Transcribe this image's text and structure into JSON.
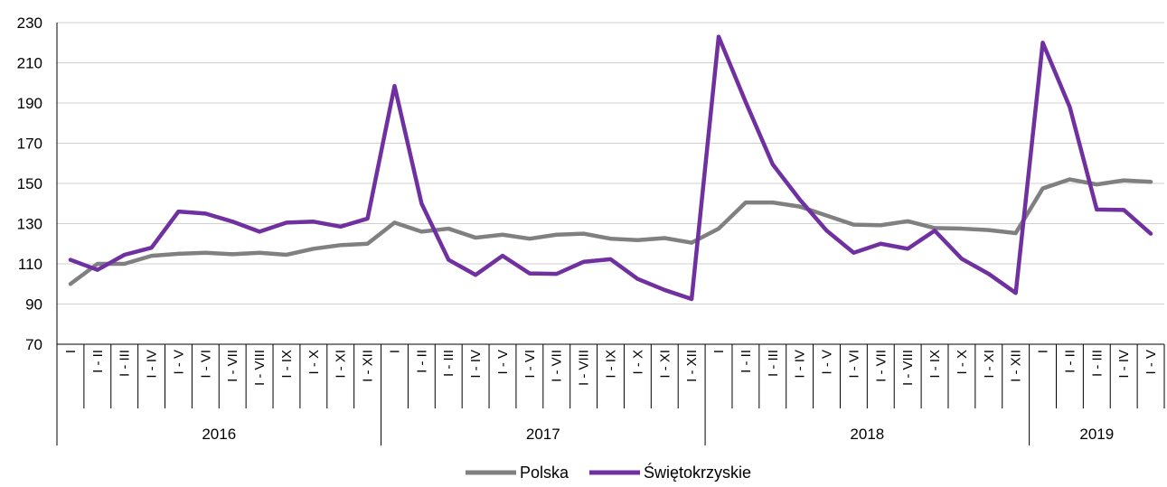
{
  "chart_data": {
    "type": "line",
    "title": "",
    "xlabel": "",
    "ylabel": "",
    "ylim": [
      70,
      230
    ],
    "yticks": [
      70,
      90,
      110,
      130,
      150,
      170,
      190,
      210,
      230
    ],
    "grid": true,
    "legend_position": "bottom-center",
    "years": [
      {
        "label": "2016",
        "count": 12
      },
      {
        "label": "2017",
        "count": 12
      },
      {
        "label": "2018",
        "count": 12
      },
      {
        "label": "2019",
        "count": 5
      }
    ],
    "categories": [
      "I",
      "I - II",
      "I - III",
      "I - IV",
      "I - V",
      "I - VI",
      "I - VII",
      "I - VIII",
      "I - IX",
      "I - X",
      "I - XI",
      "I - XII",
      "I",
      "I - II",
      "I - III",
      "I - IV",
      "I - V",
      "I - VI",
      "I - VII",
      "I - VIII",
      "I - IX",
      "I - X",
      "I - XI",
      "I - XII",
      "I",
      "I - II",
      "I - III",
      "I - IV",
      "I - V",
      "I - VI",
      "I - VII",
      "I - VIII",
      "I - IX",
      "I - X",
      "I - XI",
      "I - XII",
      "I",
      "I - II",
      "I - III",
      "I - IV",
      "I - V"
    ],
    "series": [
      {
        "name": "Polska",
        "color": "#808080",
        "values": [
          100,
          110,
          110,
          114,
          115,
          115.5,
          114.8,
          115.5,
          114.5,
          117.5,
          119.3,
          120,
          130.5,
          126,
          127.5,
          123,
          124.5,
          122.5,
          124.5,
          125,
          122.5,
          121.8,
          122.8,
          120.5,
          127.5,
          140.5,
          140.5,
          138.5,
          134,
          129.5,
          129.2,
          131.2,
          127.8,
          127.5,
          126.8,
          125.3,
          147.5,
          152,
          149.5,
          151.5,
          150.8
        ]
      },
      {
        "name": "Świętokrzyskie",
        "color": "#7030a0",
        "values": [
          112,
          107,
          114.5,
          118,
          136,
          135,
          131,
          126,
          130.5,
          131,
          128.5,
          132.5,
          198.5,
          140,
          112,
          104.5,
          114,
          105.2,
          105,
          111,
          112.3,
          102.5,
          97,
          92.5,
          223,
          190.5,
          159.5,
          142,
          126.5,
          115.5,
          120,
          117.5,
          126.5,
          112.5,
          105,
          95.5,
          220,
          188,
          137,
          136.8,
          125
        ]
      }
    ]
  }
}
